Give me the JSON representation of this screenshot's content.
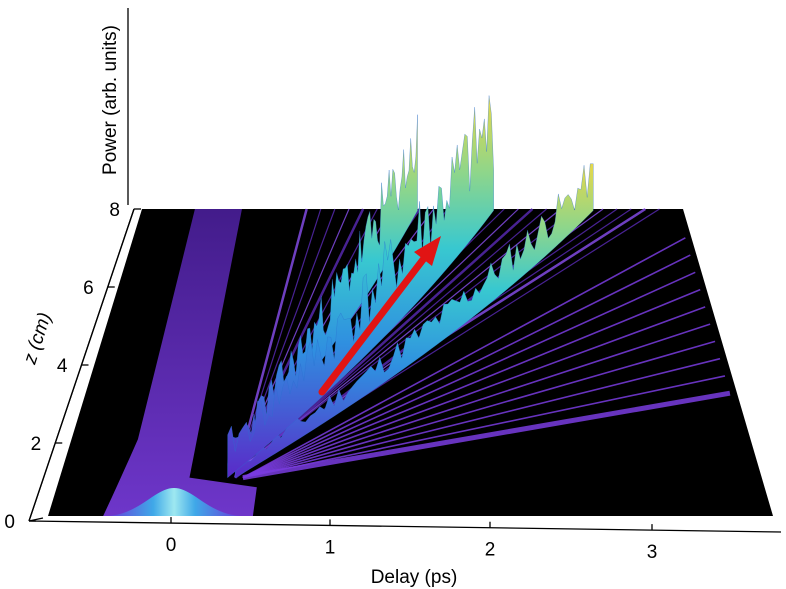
{
  "chart_data": {
    "type": "surface-3d",
    "xlabel": "Delay (ps)",
    "ylabel": "z (cm)",
    "zlabel": "Power (arb. units)",
    "x_ticks": [
      "0",
      "1",
      "2",
      "3"
    ],
    "x_tick_values": [
      0,
      1,
      2,
      3
    ],
    "xlim": [
      -0.8,
      3.8
    ],
    "y_ticks": [
      "0",
      "2",
      "4",
      "6",
      "8"
    ],
    "y_tick_values": [
      0,
      2,
      4,
      6,
      8
    ],
    "ylim": [
      0,
      8
    ],
    "ylabel_italic": true,
    "colormap": "purple-blue-cyan-green-yellow",
    "colors": {
      "background": "#000000",
      "low": "#6a2bd8",
      "mid": "#33b8dc",
      "high": "#d8e04a",
      "arrow": "#e11414"
    },
    "input_pulse": {
      "center_ps": 0,
      "fwhm_ps": 0.15
    },
    "soliton_trajectories": [
      {
        "start_z": 1.0,
        "end_delay_ps": 2.2,
        "peak": "highest"
      },
      {
        "start_z": 1.0,
        "end_delay_ps": 1.6,
        "peak": "high"
      },
      {
        "start_z": 1.0,
        "end_delay_ps": 3.0,
        "peak": "medium"
      }
    ],
    "annotation": {
      "type": "arrow",
      "from": [
        0.95,
        2.7
      ],
      "to": [
        1.65,
        6.9
      ],
      "meaning": "soliton trajectory"
    }
  }
}
